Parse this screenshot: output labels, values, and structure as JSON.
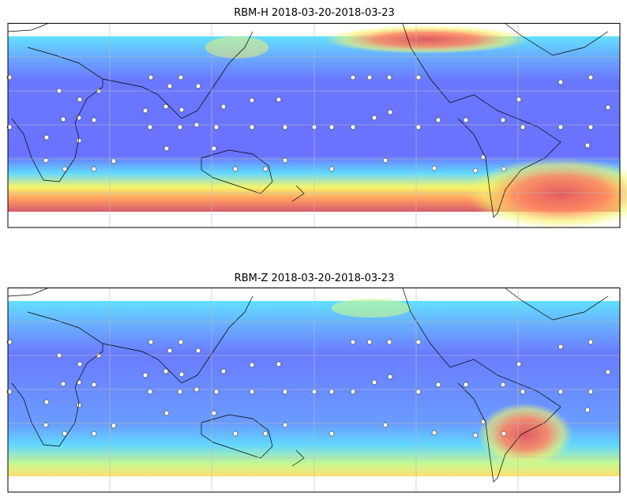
{
  "maps": [
    {
      "title": "RBM-H 2018-03-20-2018-03-23"
    },
    {
      "title": "RBM-Z 2018-03-20-2018-03-23"
    }
  ]
}
